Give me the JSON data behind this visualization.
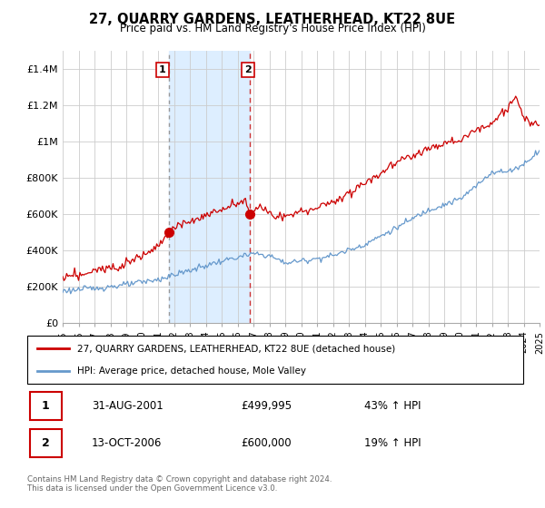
{
  "title": "27, QUARRY GARDENS, LEATHERHEAD, KT22 8UE",
  "subtitle": "Price paid vs. HM Land Registry's House Price Index (HPI)",
  "legend_line1": "27, QUARRY GARDENS, LEATHERHEAD, KT22 8UE (detached house)",
  "legend_line2": "HPI: Average price, detached house, Mole Valley",
  "transaction1_date": "31-AUG-2001",
  "transaction1_price": "£499,995",
  "transaction1_hpi": "43% ↑ HPI",
  "transaction2_date": "13-OCT-2006",
  "transaction2_price": "£600,000",
  "transaction2_hpi": "19% ↑ HPI",
  "footer": "Contains HM Land Registry data © Crown copyright and database right 2024.\nThis data is licensed under the Open Government Licence v3.0.",
  "price_line_color": "#cc0000",
  "hpi_line_color": "#6699cc",
  "highlight_color": "#ddeeff",
  "t1_vline_color": "#999999",
  "t2_vline_color": "#cc3333",
  "ylim": [
    0,
    1500000
  ],
  "yticks": [
    0,
    200000,
    400000,
    600000,
    800000,
    1000000,
    1200000,
    1400000
  ],
  "ytick_labels": [
    "£0",
    "£200K",
    "£400K",
    "£600K",
    "£800K",
    "£1M",
    "£1.2M",
    "£1.4M"
  ],
  "background_color": "#ffffff",
  "grid_color": "#cccccc",
  "t1_year": 2001.667,
  "t1_price": 499995,
  "t2_year": 2006.792,
  "t2_price": 600000
}
